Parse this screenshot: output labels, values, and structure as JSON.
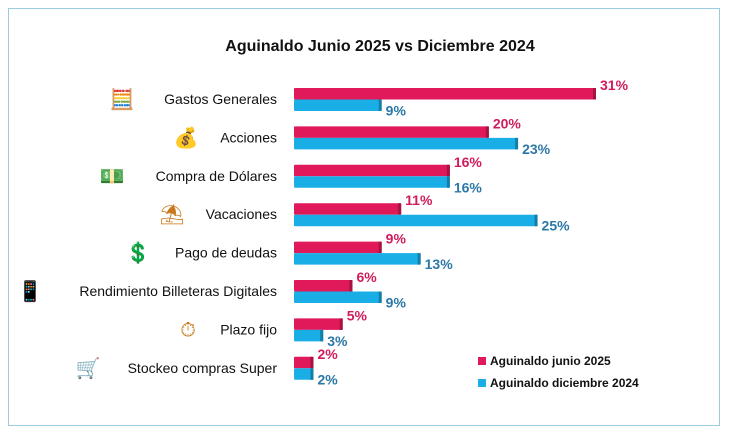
{
  "chart_data": {
    "type": "bar",
    "orientation": "horizontal",
    "title": "Aguinaldo Junio 2025 vs Diciembre 2024",
    "categories": [
      "Gastos Generales",
      "Acciones",
      "Compra de Dólares",
      "Vacaciones",
      "Pago de deudas",
      "Rendimiento Billeteras Digitales",
      "Plazo fijo",
      "Stockeo compras Super"
    ],
    "icons": [
      "calculator-money-icon",
      "investment-tree-icon",
      "dollar-hand-icon",
      "beach-umbrella-icon",
      "debt-payment-icon",
      "digital-wallet-icon",
      "stopwatch-money-icon",
      "shopping-cart-icon"
    ],
    "series": [
      {
        "name": "Aguinaldo junio 2025",
        "values": [
          31,
          20,
          16,
          11,
          9,
          6,
          5,
          2
        ],
        "color": "#e0195a",
        "label_color": "#d01c5c"
      },
      {
        "name": "Aguinaldo diciembre 2024",
        "values": [
          9,
          23,
          16,
          25,
          13,
          9,
          3,
          2
        ],
        "color": "#1aaee6",
        "label_color": "#2c78a6"
      }
    ],
    "value_suffix": "%",
    "xlim": [
      0,
      31
    ],
    "grid": false,
    "legend": "bottom-right"
  }
}
